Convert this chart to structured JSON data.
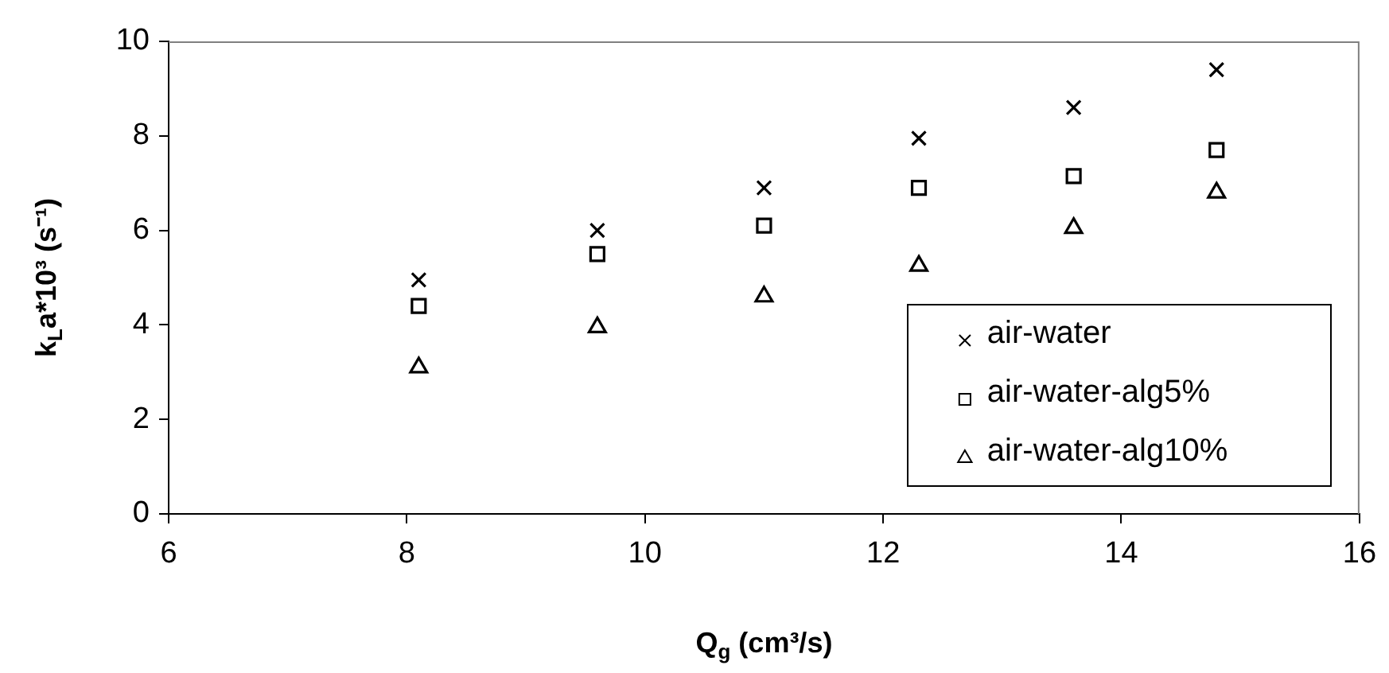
{
  "chart_data": {
    "type": "scatter",
    "xlabel": "Q$_{g}$ (cm³/s)",
    "ylabel": "k$_{L}$a*10³ (s⁻¹)",
    "x": [
      8.1,
      9.6,
      11.0,
      12.3,
      13.6,
      14.8
    ],
    "series": [
      {
        "name": "air-water",
        "color": "#000000",
        "marker": "cross",
        "values": [
          4.95,
          6.0,
          6.9,
          7.95,
          8.6,
          9.4
        ]
      },
      {
        "name": "air-water-alg5%",
        "color": "#000000",
        "marker": "square",
        "values": [
          4.4,
          5.5,
          6.1,
          6.9,
          7.15,
          7.7
        ]
      },
      {
        "name": "air-water-alg10%",
        "color": "#000000",
        "marker": "triangle",
        "values": [
          3.1,
          3.95,
          4.6,
          5.25,
          6.05,
          6.8
        ]
      }
    ],
    "xlim": [
      6,
      16
    ],
    "xticks": [
      6,
      8,
      10,
      12,
      14,
      16
    ],
    "ylim": [
      0,
      10
    ],
    "yticks": [
      0,
      2,
      4,
      6,
      8,
      10
    ],
    "grid": false,
    "legend": "bottom right"
  }
}
